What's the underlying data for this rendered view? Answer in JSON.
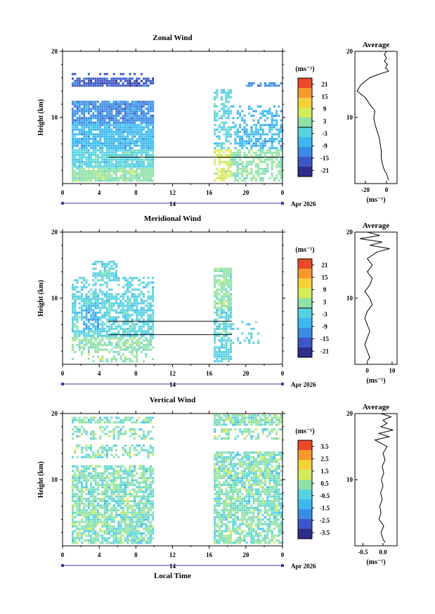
{
  "chart_data": [
    {
      "type": "heatmap",
      "title": "Zonal Wind",
      "ylabel": "Height (km)",
      "ylim": [
        0,
        20
      ],
      "yticks": [
        "20",
        "10"
      ],
      "xticks": [
        "0",
        "4",
        "8",
        "12",
        "16",
        "20",
        "0"
      ],
      "xlim": [
        0,
        24
      ],
      "date_day": "14",
      "date_month": "Apr 2026",
      "colorbar": {
        "unit_label": "(ms⁻¹)",
        "ticks": [
          "21",
          "15",
          "9",
          "3",
          "-3",
          "-9",
          "-15",
          "-21"
        ],
        "range": [
          -24,
          24
        ],
        "zero_line": 0
      },
      "profile": {
        "title": "Average",
        "xticks": [
          "-20",
          "0"
        ],
        "xlim": [
          -30,
          10
        ],
        "xlabel": "(ms⁻¹)",
        "yticks": [
          "20",
          "10"
        ],
        "heights": [
          0.5,
          1,
          1.5,
          2,
          3,
          4,
          5,
          6,
          7,
          8,
          9,
          10,
          11,
          12,
          13,
          13.5,
          14,
          15,
          16,
          16.5,
          17,
          17.5,
          18,
          18.5,
          19,
          19.5,
          20
        ],
        "values": [
          2,
          1,
          0,
          -2,
          -4,
          -5,
          -5,
          -6,
          -7,
          -9,
          -11,
          -12,
          -11,
          -16,
          -20,
          -24,
          -28,
          -24,
          -16,
          -8,
          2,
          -1,
          1,
          -2,
          0,
          -2,
          0
        ]
      },
      "segments": [
        {
          "t": [
            5,
            24
          ],
          "h": [
            4,
            4
          ]
        }
      ],
      "colors": [
        "#2d2d8a",
        "#3c57c9",
        "#3a8be6",
        "#3bb9f0",
        "#57d3e0",
        "#8fe2a6",
        "#d3ec5a",
        "#f5d23a",
        "#f69a30",
        "#e84a28"
      ]
    },
    {
      "type": "heatmap",
      "title": "Meridional Wind",
      "ylabel": "Height (km)",
      "ylim": [
        0,
        20
      ],
      "yticks": [
        "20",
        "10"
      ],
      "xticks": [
        "0",
        "4",
        "8",
        "12",
        "16",
        "20",
        "0"
      ],
      "xlim": [
        0,
        24
      ],
      "date_day": "14",
      "date_month": "Apr 2026",
      "colorbar": {
        "unit_label": "(ms⁻¹)",
        "ticks": [
          "21",
          "15",
          "9",
          "3",
          "-3",
          "-9",
          "-15",
          "-21"
        ],
        "range": [
          -24,
          24
        ],
        "zero_line": 0
      },
      "profile": {
        "title": "Average",
        "xticks": [
          "0",
          "10"
        ],
        "xlim": [
          -5,
          12
        ],
        "xlabel": "(ms⁻¹)",
        "yticks": [
          "20",
          "10"
        ],
        "heights": [
          0.5,
          1,
          2,
          3,
          4,
          5,
          6,
          7,
          8,
          9,
          10,
          11,
          12,
          13,
          14,
          15,
          16,
          17,
          17.5,
          18,
          18.5,
          19,
          19.5,
          20
        ],
        "values": [
          0,
          1,
          0,
          -1,
          0,
          1,
          0,
          -1,
          0,
          2,
          1,
          -1,
          1,
          2,
          0,
          2,
          0,
          4,
          9,
          1,
          6,
          -3,
          5,
          0
        ],
        "tick_at_zero": true
      },
      "segments": [
        {
          "t": [
            5,
            18.5
          ],
          "h": [
            6.5,
            6.5
          ]
        },
        {
          "t": [
            5,
            18.5
          ],
          "h": [
            4.5,
            4.5
          ]
        }
      ],
      "colors": [
        "#2d2d8a",
        "#3c57c9",
        "#3a8be6",
        "#3bb9f0",
        "#57d3e0",
        "#8fe2a6",
        "#d3ec5a",
        "#f5d23a",
        "#f69a30",
        "#e84a28"
      ]
    },
    {
      "type": "heatmap",
      "title": "Vertical Wind",
      "ylabel": "Height (km)",
      "ylim": [
        0,
        20
      ],
      "yticks": [
        "20",
        "10"
      ],
      "xticks": [
        "0",
        "4",
        "8",
        "12",
        "16",
        "20",
        "0"
      ],
      "xlim": [
        0,
        24
      ],
      "date_day": "14",
      "date_month": "Apr 2026",
      "xlabel": "Local Time",
      "colorbar": {
        "unit_label": "(ms⁻¹)",
        "ticks": [
          "3.5",
          "2.5",
          "1.5",
          "0.5",
          "-0.5",
          "-1.5",
          "-2.5",
          "-3.5"
        ],
        "range": [
          -4,
          4
        ]
      },
      "profile": {
        "title": "Average",
        "xticks": [
          "-0.5",
          "0.0"
        ],
        "xlim": [
          -0.7,
          0.35
        ],
        "xlabel": "(ms⁻¹)",
        "yticks": [
          "20",
          "10"
        ],
        "heights": [
          0.5,
          1,
          2,
          3,
          4,
          5,
          6,
          7,
          8,
          9,
          10,
          11,
          12,
          13,
          14,
          15,
          16,
          16.5,
          17,
          17.5,
          18,
          18.5,
          19,
          19.5,
          20
        ],
        "values": [
          0.05,
          0.0,
          -0.05,
          0.02,
          -0.1,
          -0.05,
          -0.08,
          -0.02,
          -0.06,
          0.0,
          -0.04,
          0.02,
          -0.02,
          0.05,
          0.0,
          0.1,
          -0.2,
          0.15,
          -0.1,
          0.25,
          -0.05,
          0.1,
          0.0,
          0.2,
          -0.05
        ]
      },
      "segments": [],
      "colors": [
        "#2d2d8a",
        "#3c57c9",
        "#3a8be6",
        "#3bb9f0",
        "#57d3e0",
        "#8fe2a6",
        "#d3ec5a",
        "#f5d23a",
        "#f69a30",
        "#e84a28"
      ]
    }
  ]
}
